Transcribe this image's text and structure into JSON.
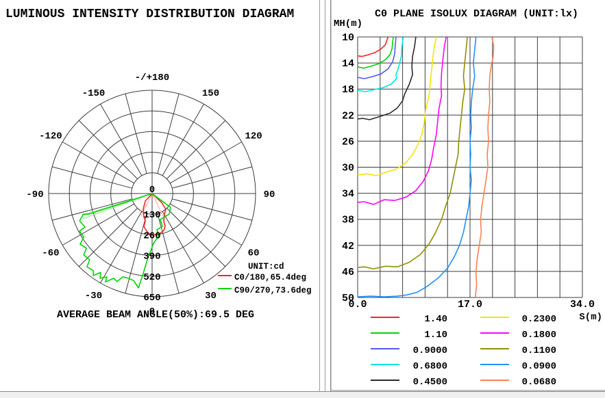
{
  "chart_data": [
    {
      "type": "line",
      "style": "polar-intensity",
      "title": "LUMINOUS INTENSITY DISTRIBUTION DIAGRAM",
      "unit_label": "UNIT:cd",
      "caption": "AVERAGE BEAM ANGLE(50%):69.5 DEG",
      "center_label": "0",
      "ring_values": [
        130,
        260,
        390,
        520,
        650
      ],
      "rmax": 650,
      "angle_labels": [
        {
          "angle": 0,
          "label": "0"
        },
        {
          "angle": 30,
          "label": "30"
        },
        {
          "angle": 60,
          "label": "60"
        },
        {
          "angle": 90,
          "label": "90"
        },
        {
          "angle": 120,
          "label": "120"
        },
        {
          "angle": 150,
          "label": "150"
        },
        {
          "angle": 180,
          "label": "-/+180"
        },
        {
          "angle": -150,
          "label": "-150"
        },
        {
          "angle": -120,
          "label": "-120"
        },
        {
          "angle": -90,
          "label": "-90"
        },
        {
          "angle": -60,
          "label": "-60"
        },
        {
          "angle": -30,
          "label": "-30"
        }
      ],
      "series": [
        {
          "name": "C0/180,65.4deg",
          "color": "#ff2121",
          "points": [
            [
              -49,
              0
            ],
            [
              -42,
              64
            ],
            [
              -29.5,
              114
            ],
            [
              -19.4,
              155
            ],
            [
              -14,
              177
            ],
            [
              -14,
              213
            ],
            [
              -8.3,
              239
            ],
            [
              -3.9,
              254
            ],
            [
              0,
              258
            ],
            [
              4.8,
              259
            ],
            [
              11.7,
              255
            ],
            [
              17.5,
              244
            ],
            [
              21.6,
              222
            ],
            [
              23,
              187
            ],
            [
              31,
              151
            ],
            [
              41,
              131
            ],
            [
              47,
              82
            ],
            [
              49,
              0
            ]
          ]
        },
        {
          "name": "C90/270,73.6deg",
          "color": "#00d500",
          "points": [
            [
              35,
              0
            ],
            [
              53,
              145
            ],
            [
              40,
              168
            ],
            [
              17.5,
              171
            ],
            [
              17.4,
              216
            ],
            [
              7.5,
              230
            ],
            [
              9.2,
              270
            ],
            [
              2,
              310
            ],
            [
              -3.7,
              404
            ],
            [
              -6.3,
              505
            ],
            [
              -8.2,
              600
            ],
            [
              -12,
              560
            ],
            [
              -15.8,
              554
            ],
            [
              -19.4,
              556
            ],
            [
              -21.6,
              596
            ],
            [
              -24.3,
              585
            ],
            [
              -27.8,
              629
            ],
            [
              -28.4,
              597
            ],
            [
              -31.5,
              625
            ],
            [
              -33.1,
              593
            ],
            [
              -35.6,
              635
            ],
            [
              -37.2,
              610
            ],
            [
              -41.6,
              616
            ],
            [
              -43.2,
              573
            ],
            [
              -48,
              578
            ],
            [
              -50.2,
              537
            ],
            [
              -54.8,
              553
            ],
            [
              -57.4,
              510
            ],
            [
              -62.6,
              513
            ],
            [
              -63.4,
              471
            ],
            [
              -69.3,
              487
            ],
            [
              -73.3,
              451
            ],
            [
              -72,
              420
            ],
            [
              -72.3,
              0
            ]
          ]
        }
      ],
      "beam_lines": [
        {
          "color": "#ffb0b0",
          "rays": [
            [
              -26,
              160
            ],
            [
              26,
              160
            ]
          ]
        },
        {
          "color": "#90e890",
          "rays": [
            [
              -72.8,
              450
            ],
            [
              -70,
              465
            ]
          ]
        }
      ]
    },
    {
      "type": "line",
      "style": "contour",
      "title": "C0 PLANE ISOLUX DIAGRAM (UNIT:lx)",
      "xlabel": "S(m)",
      "ylabel": "MH(m)",
      "x_range": [
        0,
        34
      ],
      "y_range": [
        10,
        50
      ],
      "grid_cols": 10,
      "grid_rows": 10,
      "x_ticks": [
        {
          "label": "0.0",
          "value": 0
        },
        {
          "label": "17.0",
          "value": 17
        },
        {
          "label": "34.0",
          "value": 34
        }
      ],
      "y_ticks": [
        10,
        14,
        18,
        22,
        26,
        30,
        34,
        38,
        42,
        46,
        50
      ],
      "series": [
        {
          "name": "1.40",
          "color": "#ff2121",
          "points": [
            [
              4.6,
              10
            ],
            [
              4.4,
              10.6
            ],
            [
              4.2,
              11.2
            ],
            [
              3.6,
              11.8
            ],
            [
              2.6,
              12.4
            ],
            [
              1.4,
              12.8
            ],
            [
              0.6,
              13.0
            ],
            [
              0,
              12.9
            ]
          ]
        },
        {
          "name": "1.10",
          "color": "#00d500",
          "points": [
            [
              5.4,
              10
            ],
            [
              5.3,
              10.8
            ],
            [
              5.2,
              11.8
            ],
            [
              4.9,
              12.7
            ],
            [
              4.2,
              13.5
            ],
            [
              3.2,
              14.1
            ],
            [
              2.0,
              14.5
            ],
            [
              0.9,
              14.8
            ],
            [
              0,
              14.6
            ]
          ]
        },
        {
          "name": "0.9000",
          "color": "#5555ff",
          "points": [
            [
              5.8,
              10
            ],
            [
              5.7,
              11.2
            ],
            [
              5.6,
              12.6
            ],
            [
              5.3,
              13.8
            ],
            [
              4.6,
              14.9
            ],
            [
              3.5,
              15.7
            ],
            [
              2.2,
              16.1
            ],
            [
              1.0,
              16.4
            ],
            [
              0,
              16.2
            ]
          ]
        },
        {
          "name": "0.6800",
          "color": "#00e5e5",
          "points": [
            [
              6.9,
              10
            ],
            [
              6.7,
              11.5
            ],
            [
              6.6,
              13.0
            ],
            [
              6.3,
              14.2
            ],
            [
              6.1,
              15.0
            ],
            [
              5.8,
              15.8
            ],
            [
              5.9,
              16.4
            ],
            [
              5.0,
              17.3
            ],
            [
              3.8,
              17.8
            ],
            [
              2.4,
              18.1
            ],
            [
              1.2,
              18.4
            ],
            [
              0,
              18.2
            ]
          ]
        },
        {
          "name": "0.4500",
          "color": "#2a2a2a",
          "points": [
            [
              8.8,
              10
            ],
            [
              8.6,
              11.5
            ],
            [
              8.3,
              13
            ],
            [
              8.2,
              14.5
            ],
            [
              8.3,
              15.8
            ],
            [
              7.8,
              17.3
            ],
            [
              7.1,
              18.8
            ],
            [
              6.8,
              19.8
            ],
            [
              6.0,
              20.9
            ],
            [
              4.9,
              21.7
            ],
            [
              3.4,
              22.2
            ],
            [
              1.8,
              22.7
            ],
            [
              0.8,
              22.5
            ],
            [
              0,
              22.6
            ]
          ]
        },
        {
          "name": "0.2300",
          "color": "#f5e400",
          "points": [
            [
              11.9,
              10
            ],
            [
              11.6,
              11.5
            ],
            [
              11.4,
              13
            ],
            [
              11.2,
              15
            ],
            [
              11.0,
              17
            ],
            [
              10.8,
              19
            ],
            [
              10.3,
              21
            ],
            [
              10.1,
              23
            ],
            [
              9.7,
              25
            ],
            [
              9.0,
              26.8
            ],
            [
              8.2,
              28.2
            ],
            [
              7.2,
              29.4
            ],
            [
              5.8,
              30.3
            ],
            [
              4.2,
              30.8
            ],
            [
              2.8,
              31.3
            ],
            [
              1.4,
              31.0
            ],
            [
              0,
              31.2
            ]
          ]
        },
        {
          "name": "0.1800",
          "color": "#ff00ff",
          "points": [
            [
              13.4,
              10
            ],
            [
              13.1,
              11.5
            ],
            [
              12.9,
              13.5
            ],
            [
              12.7,
              15.5
            ],
            [
              12.6,
              17.5
            ],
            [
              12.7,
              19
            ],
            [
              12.3,
              21
            ],
            [
              12.1,
              23
            ],
            [
              11.9,
              25
            ],
            [
              11.5,
              27
            ],
            [
              11.2,
              28.8
            ],
            [
              10.7,
              30.6
            ],
            [
              9.9,
              32.2
            ],
            [
              8.8,
              33.6
            ],
            [
              7.3,
              34.6
            ],
            [
              5.6,
              35.1
            ],
            [
              4.0,
              35.0
            ],
            [
              2.4,
              35.7
            ],
            [
              1.0,
              35.3
            ],
            [
              0,
              35.4
            ]
          ]
        },
        {
          "name": "0.1100",
          "color": "#8f8f00",
          "points": [
            [
              16.6,
              10
            ],
            [
              16.4,
              12
            ],
            [
              16.2,
              14
            ],
            [
              16.0,
              16
            ],
            [
              16.2,
              18
            ],
            [
              15.9,
              20
            ],
            [
              15.7,
              22
            ],
            [
              15.5,
              24
            ],
            [
              15.3,
              26
            ],
            [
              15.2,
              28
            ],
            [
              14.8,
              30
            ],
            [
              14.4,
              32
            ],
            [
              14.0,
              34
            ],
            [
              13.3,
              36
            ],
            [
              12.7,
              38
            ],
            [
              11.8,
              40
            ],
            [
              10.8,
              41.8
            ],
            [
              9.5,
              43.4
            ],
            [
              7.8,
              44.6
            ],
            [
              6.0,
              45.3
            ],
            [
              4.2,
              45.2
            ],
            [
              2.4,
              45.6
            ],
            [
              1.0,
              45.3
            ],
            [
              0,
              45.4
            ]
          ]
        },
        {
          "name": "0.0900",
          "color": "#1e90ff",
          "points": [
            [
              17.9,
              10
            ],
            [
              17.7,
              12
            ],
            [
              17.5,
              14
            ],
            [
              17.7,
              16
            ],
            [
              17.4,
              18
            ],
            [
              17.2,
              20
            ],
            [
              17.1,
              22
            ],
            [
              17.2,
              24
            ],
            [
              17.0,
              26
            ],
            [
              17.1,
              28
            ],
            [
              17.0,
              30
            ],
            [
              17.2,
              32
            ],
            [
              17.0,
              34
            ],
            [
              16.8,
              36
            ],
            [
              16.4,
              38
            ],
            [
              16.0,
              40
            ],
            [
              15.4,
              42
            ],
            [
              14.6,
              43.8
            ],
            [
              13.6,
              45.5
            ],
            [
              12.2,
              47
            ],
            [
              10.5,
              48.3
            ],
            [
              9.0,
              49.2
            ],
            [
              7.5,
              49.6
            ],
            [
              6.0,
              49.8
            ],
            [
              4.0,
              49.9
            ],
            [
              2.0,
              49.8
            ],
            [
              0,
              49.9
            ]
          ]
        },
        {
          "name": "0.0680",
          "color": "#ff7f50",
          "points": [
            [
              20.3,
              10
            ],
            [
              20.6,
              11.5
            ],
            [
              20.5,
              13
            ],
            [
              20.2,
              14.5
            ],
            [
              20.0,
              16
            ],
            [
              19.9,
              18
            ],
            [
              20.0,
              20
            ],
            [
              19.8,
              22
            ],
            [
              19.7,
              24
            ],
            [
              19.8,
              26
            ],
            [
              19.6,
              28
            ],
            [
              19.7,
              30
            ],
            [
              19.4,
              32
            ],
            [
              19.1,
              34
            ],
            [
              18.8,
              36
            ],
            [
              18.6,
              38
            ],
            [
              18.7,
              40
            ],
            [
              18.4,
              42
            ],
            [
              18.1,
              44
            ],
            [
              17.9,
              46
            ],
            [
              18.0,
              48
            ],
            [
              17.8,
              50
            ]
          ]
        }
      ]
    }
  ]
}
